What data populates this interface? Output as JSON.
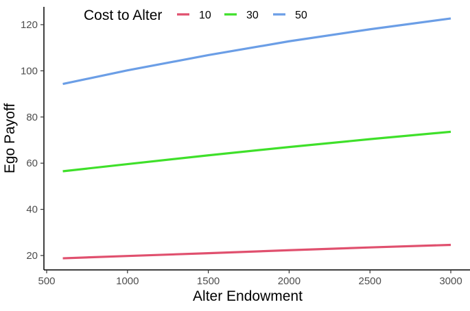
{
  "chart_data": {
    "type": "line",
    "title": "",
    "xlabel": "Alter Endowment",
    "ylabel": "Ego Payoff",
    "xlim": [
      490,
      3090
    ],
    "ylim": [
      13.5,
      127
    ],
    "x_ticks": [
      500,
      1000,
      1500,
      2000,
      2500,
      3000
    ],
    "y_ticks": [
      20,
      40,
      60,
      80,
      100,
      120
    ],
    "grid": false,
    "legend": {
      "title": "Cost to Alter",
      "placement": "top-left"
    },
    "x": [
      600,
      1000,
      1500,
      2000,
      2500,
      3000
    ],
    "series": [
      {
        "name": "10",
        "color": "#e0506e",
        "values": [
          18.8,
          19.8,
          21.0,
          22.3,
          23.5,
          24.6
        ]
      },
      {
        "name": "30",
        "color": "#3fe02a",
        "values": [
          56.5,
          59.6,
          63.4,
          67.0,
          70.4,
          73.6
        ]
      },
      {
        "name": "50",
        "color": "#6b9ee6",
        "values": [
          94.3,
          100.2,
          106.8,
          112.8,
          118.0,
          122.7
        ]
      }
    ]
  }
}
